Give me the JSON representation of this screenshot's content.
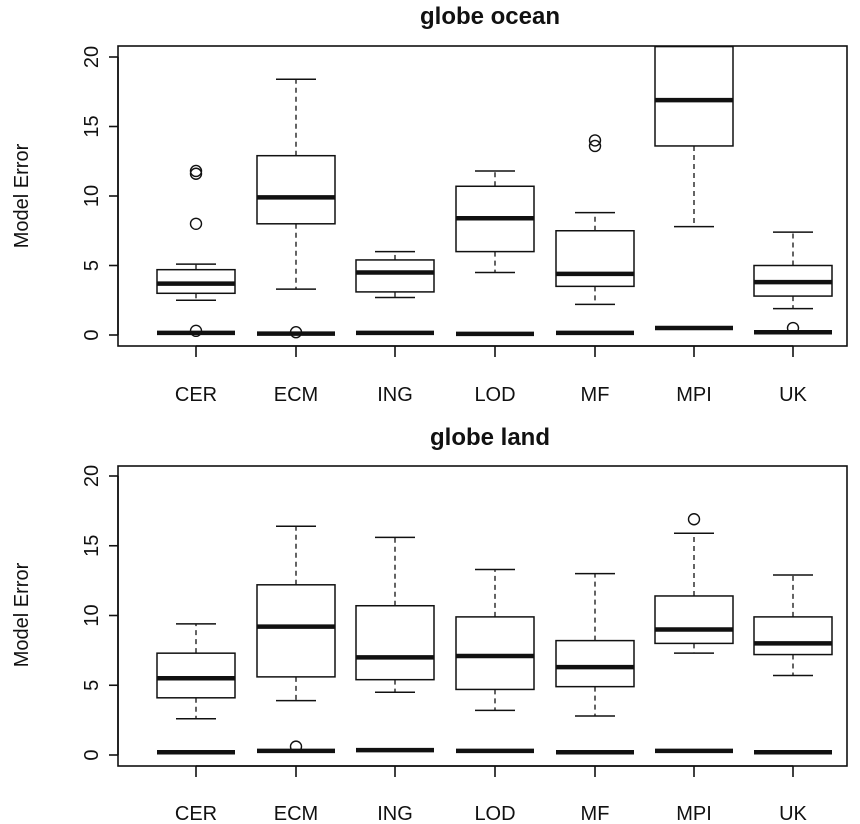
{
  "chart_data": [
    {
      "type": "boxplot",
      "title": "globe ocean",
      "ylabel": "Model Error",
      "xlabel": "",
      "ylim": [
        0,
        20
      ],
      "yticks": [
        0,
        5,
        10,
        15,
        20
      ],
      "categories": [
        "CER",
        "ECM",
        "ING",
        "LOD",
        "MF",
        "MPI",
        "UK"
      ],
      "series": [
        {
          "boxes": [
            {
              "whislo": 2.5,
              "q1": 3.0,
              "med": 3.7,
              "q3": 4.7,
              "whishi": 5.1,
              "fliers": [
                8.0,
                11.6,
                11.8
              ]
            },
            {
              "whislo": 3.3,
              "q1": 8.0,
              "med": 9.9,
              "q3": 12.9,
              "whishi": 18.4,
              "fliers": []
            },
            {
              "whislo": 2.7,
              "q1": 3.1,
              "med": 4.5,
              "q3": 5.4,
              "whishi": 6.0,
              "fliers": []
            },
            {
              "whislo": 4.5,
              "q1": 6.0,
              "med": 8.4,
              "q3": 10.7,
              "whishi": 11.8,
              "fliers": []
            },
            {
              "whislo": 2.2,
              "q1": 3.5,
              "med": 4.4,
              "q3": 7.5,
              "whishi": 8.8,
              "fliers": [
                13.6,
                14.0
              ]
            },
            {
              "whislo": 7.8,
              "q1": 13.6,
              "med": 16.9,
              "q3": 20.8,
              "whishi": 20.8,
              "fliers": []
            },
            {
              "whislo": 1.9,
              "q1": 2.8,
              "med": 3.8,
              "q3": 5.0,
              "whishi": 7.4,
              "fliers": []
            }
          ]
        },
        {
          "boxes": [
            {
              "whislo": 0.1,
              "q1": 0.1,
              "med": 0.15,
              "q3": 0.2,
              "whishi": 0.25,
              "fliers": [
                0.3
              ]
            },
            {
              "whislo": 0.05,
              "q1": 0.08,
              "med": 0.1,
              "q3": 0.12,
              "whishi": 0.15,
              "fliers": [
                0.2
              ]
            },
            {
              "whislo": 0.1,
              "q1": 0.12,
              "med": 0.15,
              "q3": 0.18,
              "whishi": 0.2,
              "fliers": []
            },
            {
              "whislo": 0.05,
              "q1": 0.06,
              "med": 0.08,
              "q3": 0.1,
              "whishi": 0.12,
              "fliers": []
            },
            {
              "whislo": 0.1,
              "q1": 0.12,
              "med": 0.15,
              "q3": 0.2,
              "whishi": 0.25,
              "fliers": []
            },
            {
              "whislo": 0.4,
              "q1": 0.45,
              "med": 0.5,
              "q3": 0.6,
              "whishi": 0.7,
              "fliers": []
            },
            {
              "whislo": 0.15,
              "q1": 0.18,
              "med": 0.2,
              "q3": 0.25,
              "whishi": 0.3,
              "fliers": [
                0.5
              ]
            }
          ]
        }
      ]
    },
    {
      "type": "boxplot",
      "title": "globe land",
      "ylabel": "Model Error",
      "xlabel": "",
      "ylim": [
        0,
        20
      ],
      "yticks": [
        0,
        5,
        10,
        15,
        20
      ],
      "categories": [
        "CER",
        "ECM",
        "ING",
        "LOD",
        "MF",
        "MPI",
        "UK"
      ],
      "series": [
        {
          "boxes": [
            {
              "whislo": 2.6,
              "q1": 4.1,
              "med": 5.5,
              "q3": 7.3,
              "whishi": 9.4,
              "fliers": []
            },
            {
              "whislo": 3.9,
              "q1": 5.6,
              "med": 9.2,
              "q3": 12.2,
              "whishi": 16.4,
              "fliers": []
            },
            {
              "whislo": 4.5,
              "q1": 5.4,
              "med": 7.0,
              "q3": 10.7,
              "whishi": 15.6,
              "fliers": []
            },
            {
              "whislo": 3.2,
              "q1": 4.7,
              "med": 7.1,
              "q3": 9.9,
              "whishi": 13.3,
              "fliers": []
            },
            {
              "whislo": 2.8,
              "q1": 4.9,
              "med": 6.3,
              "q3": 8.2,
              "whishi": 13.0,
              "fliers": []
            },
            {
              "whislo": 7.3,
              "q1": 8.0,
              "med": 9.0,
              "q3": 11.4,
              "whishi": 15.9,
              "fliers": [
                16.9
              ]
            },
            {
              "whislo": 5.7,
              "q1": 7.2,
              "med": 8.0,
              "q3": 9.9,
              "whishi": 12.9,
              "fliers": []
            }
          ]
        },
        {
          "boxes": [
            {
              "whislo": 0.15,
              "q1": 0.18,
              "med": 0.2,
              "q3": 0.22,
              "whishi": 0.25,
              "fliers": []
            },
            {
              "whislo": 0.25,
              "q1": 0.28,
              "med": 0.3,
              "q3": 0.35,
              "whishi": 0.4,
              "fliers": [
                0.6
              ]
            },
            {
              "whislo": 0.25,
              "q1": 0.3,
              "med": 0.35,
              "q3": 0.45,
              "whishi": 0.6,
              "fliers": []
            },
            {
              "whislo": 0.25,
              "q1": 0.28,
              "med": 0.3,
              "q3": 0.35,
              "whishi": 0.4,
              "fliers": []
            },
            {
              "whislo": 0.15,
              "q1": 0.18,
              "med": 0.2,
              "q3": 0.22,
              "whishi": 0.25,
              "fliers": []
            },
            {
              "whislo": 0.25,
              "q1": 0.28,
              "med": 0.3,
              "q3": 0.35,
              "whishi": 0.45,
              "fliers": []
            },
            {
              "whislo": 0.15,
              "q1": 0.18,
              "med": 0.2,
              "q3": 0.22,
              "whishi": 0.25,
              "fliers": []
            }
          ]
        }
      ]
    }
  ]
}
